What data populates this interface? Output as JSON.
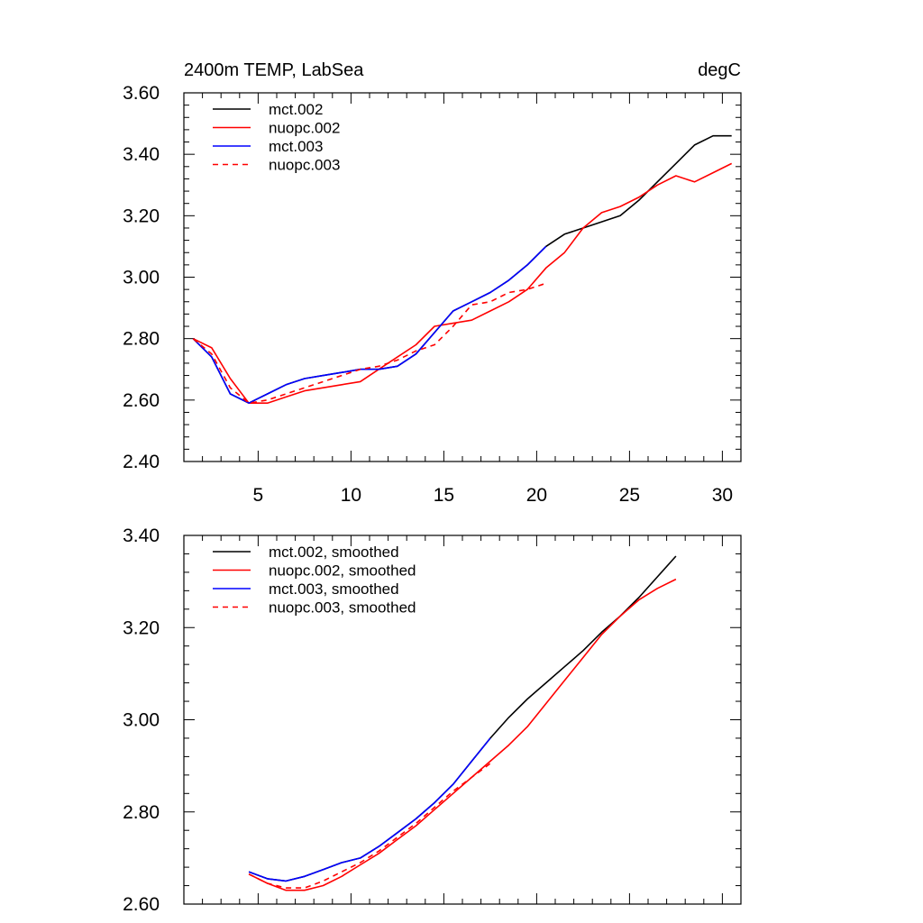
{
  "figure": {
    "title_left": "2400m TEMP, LabSea",
    "title_right": "degC"
  },
  "chart_data": [
    {
      "type": "line",
      "title": "2400m TEMP, LabSea",
      "units": "degC",
      "xlim": [
        1,
        31
      ],
      "ylim": [
        2.4,
        3.6
      ],
      "xticks": [
        5,
        10,
        15,
        20,
        25,
        30
      ],
      "xtick_labels": [
        "5",
        "10",
        "15",
        "20",
        "25",
        "30"
      ],
      "yticks": [
        2.4,
        2.6,
        2.8,
        3.0,
        3.2,
        3.4,
        3.6
      ],
      "ytick_labels": [
        "2.40",
        "2.60",
        "2.80",
        "3.00",
        "3.20",
        "3.40",
        "3.60"
      ],
      "legend_position": "top-left",
      "series": [
        {
          "name": "mct.002",
          "color": "#000000",
          "dash": "solid",
          "x": [
            1.5,
            2.5,
            3.5,
            4.5,
            5.5,
            6.5,
            7.5,
            8.5,
            9.5,
            10.5,
            11.5,
            12.5,
            13.5,
            14.5,
            15.5,
            16.5,
            17.5,
            18.5,
            19.5,
            20.5,
            21.5,
            22.5,
            23.5,
            24.5,
            25.5,
            26.5,
            27.5,
            28.5,
            29.5,
            30.5
          ],
          "y": [
            2.8,
            2.74,
            2.62,
            2.59,
            2.62,
            2.65,
            2.67,
            2.68,
            2.69,
            2.7,
            2.7,
            2.71,
            2.75,
            2.82,
            2.89,
            2.92,
            2.95,
            2.99,
            3.04,
            3.1,
            3.14,
            3.16,
            3.18,
            3.2,
            3.25,
            3.31,
            3.37,
            3.43,
            3.46,
            3.46
          ]
        },
        {
          "name": "nuopc.002",
          "color": "#ff0000",
          "dash": "solid",
          "x": [
            1.5,
            2.5,
            3.5,
            4.5,
            5.5,
            6.5,
            7.5,
            8.5,
            9.5,
            10.5,
            11.5,
            12.5,
            13.5,
            14.5,
            15.5,
            16.5,
            17.5,
            18.5,
            19.5,
            20.5,
            21.5,
            22.5,
            23.5,
            24.5,
            25.5,
            26.5,
            27.5,
            28.5,
            29.5,
            30.5
          ],
          "y": [
            2.8,
            2.77,
            2.67,
            2.59,
            2.59,
            2.61,
            2.63,
            2.64,
            2.65,
            2.66,
            2.7,
            2.74,
            2.78,
            2.84,
            2.85,
            2.86,
            2.89,
            2.92,
            2.96,
            3.03,
            3.08,
            3.16,
            3.21,
            3.23,
            3.26,
            3.3,
            3.33,
            3.31,
            3.34,
            3.37
          ]
        },
        {
          "name": "mct.003",
          "color": "#0000ff",
          "dash": "solid",
          "x": [
            1.5,
            2.5,
            3.5,
            4.5,
            5.5,
            6.5,
            7.5,
            8.5,
            9.5,
            10.5,
            11.5,
            12.5,
            13.5,
            14.5,
            15.5,
            16.5,
            17.5,
            18.5,
            19.5,
            20.5
          ],
          "y": [
            2.8,
            2.74,
            2.62,
            2.59,
            2.62,
            2.65,
            2.67,
            2.68,
            2.69,
            2.7,
            2.7,
            2.71,
            2.75,
            2.82,
            2.89,
            2.92,
            2.95,
            2.99,
            3.04,
            3.1
          ]
        },
        {
          "name": "nuopc.003",
          "color": "#ff0000",
          "dash": "dashed",
          "x": [
            1.5,
            2.5,
            3.5,
            4.5,
            5.5,
            6.5,
            7.5,
            8.5,
            9.5,
            10.5,
            11.5,
            12.5,
            13.5,
            14.5,
            15.5,
            16.5,
            17.5,
            18.5,
            19.5,
            20.5
          ],
          "y": [
            2.8,
            2.75,
            2.64,
            2.59,
            2.6,
            2.62,
            2.64,
            2.66,
            2.68,
            2.7,
            2.71,
            2.73,
            2.76,
            2.78,
            2.84,
            2.91,
            2.92,
            2.95,
            2.96,
            2.98
          ]
        }
      ]
    },
    {
      "type": "line",
      "title": "",
      "xlim": [
        1,
        31
      ],
      "ylim": [
        2.6,
        3.4
      ],
      "xticks": [
        5,
        10,
        15,
        20,
        25,
        30
      ],
      "xtick_labels": [],
      "yticks": [
        2.6,
        2.8,
        3.0,
        3.2,
        3.4
      ],
      "ytick_labels": [
        "2.60",
        "2.80",
        "3.00",
        "3.20",
        "3.40"
      ],
      "legend_position": "top-left",
      "series": [
        {
          "name": "mct.002, smoothed",
          "color": "#000000",
          "dash": "solid",
          "x": [
            4.5,
            5.5,
            6.5,
            7.5,
            8.5,
            9.5,
            10.5,
            11.5,
            12.5,
            13.5,
            14.5,
            15.5,
            16.5,
            17.5,
            18.5,
            19.5,
            20.5,
            21.5,
            22.5,
            23.5,
            24.5,
            25.5,
            26.5,
            27.5
          ],
          "y": [
            2.67,
            2.655,
            2.65,
            2.66,
            2.675,
            2.69,
            2.7,
            2.725,
            2.755,
            2.785,
            2.82,
            2.86,
            2.91,
            2.96,
            3.005,
            3.045,
            3.08,
            3.115,
            3.15,
            3.19,
            3.225,
            3.265,
            3.31,
            3.355
          ]
        },
        {
          "name": "nuopc.002, smoothed",
          "color": "#ff0000",
          "dash": "solid",
          "x": [
            4.5,
            5.5,
            6.5,
            7.5,
            8.5,
            9.5,
            10.5,
            11.5,
            12.5,
            13.5,
            14.5,
            15.5,
            16.5,
            17.5,
            18.5,
            19.5,
            20.5,
            21.5,
            22.5,
            23.5,
            24.5,
            25.5,
            26.5,
            27.5
          ],
          "y": [
            2.665,
            2.645,
            2.63,
            2.63,
            2.64,
            2.66,
            2.685,
            2.71,
            2.74,
            2.77,
            2.805,
            2.84,
            2.875,
            2.91,
            2.945,
            2.985,
            3.035,
            3.085,
            3.135,
            3.185,
            3.225,
            3.26,
            3.285,
            3.305
          ]
        },
        {
          "name": "mct.003, smoothed",
          "color": "#0000ff",
          "dash": "solid",
          "x": [
            4.5,
            5.5,
            6.5,
            7.5,
            8.5,
            9.5,
            10.5,
            11.5,
            12.5,
            13.5,
            14.5,
            15.5,
            16.5,
            17.5
          ],
          "y": [
            2.67,
            2.655,
            2.65,
            2.66,
            2.675,
            2.69,
            2.7,
            2.725,
            2.755,
            2.785,
            2.82,
            2.86,
            2.91,
            2.96
          ]
        },
        {
          "name": "nuopc.003, smoothed",
          "color": "#ff0000",
          "dash": "dashed",
          "x": [
            4.5,
            5.5,
            6.5,
            7.5,
            8.5,
            9.5,
            10.5,
            11.5,
            12.5,
            13.5,
            14.5,
            15.5,
            16.5,
            17.5
          ],
          "y": [
            2.665,
            2.645,
            2.635,
            2.635,
            2.65,
            2.67,
            2.69,
            2.715,
            2.745,
            2.775,
            2.81,
            2.845,
            2.875,
            2.905
          ]
        }
      ]
    }
  ]
}
